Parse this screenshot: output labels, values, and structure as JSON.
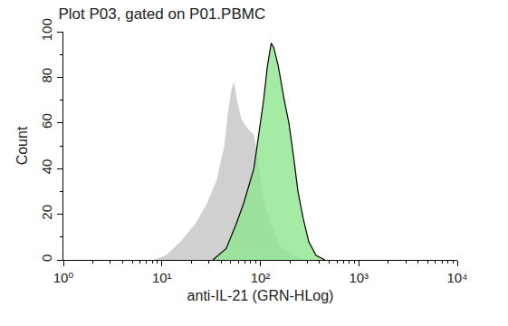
{
  "chart_data": {
    "type": "area",
    "title": "Plot P03, gated on P01.PBMC",
    "x_label": "anti-IL-21 (GRN-HLog)",
    "y_label": "Count",
    "log": "x",
    "xlim": [
      1,
      10000
    ],
    "xticks": [
      {
        "value": 1,
        "label": "10⁰"
      },
      {
        "value": 10,
        "label": "10¹"
      },
      {
        "value": 100,
        "label": "10²"
      },
      {
        "value": 1000,
        "label": "10³"
      },
      {
        "value": 10000,
        "label": "10⁴"
      }
    ],
    "ylim": [
      0,
      100
    ],
    "yticks": [
      0,
      20,
      40,
      60,
      80,
      100
    ],
    "grid": false,
    "series": [
      {
        "color": "#c4c4c4",
        "line_style": "none",
        "x": [
          8.3,
          11,
          15.5,
          22,
          29,
          36,
          43,
          47,
          51,
          54,
          58,
          64,
          68,
          76,
          86,
          94,
          104,
          129,
          160,
          218,
          300
        ],
        "values": [
          0,
          2,
          8,
          16,
          25,
          35,
          50,
          65,
          75,
          78,
          70,
          62,
          60,
          57,
          55,
          45,
          30,
          15,
          6,
          2,
          0
        ]
      },
      {
        "color": "#8ee68e",
        "line_style": "solid",
        "x": [
          33,
          45,
          56,
          68,
          86,
          100,
          108,
          118,
          129,
          137,
          152,
          175,
          195,
          218,
          241,
          273,
          310,
          368,
          453
        ],
        "values": [
          0,
          5,
          15,
          25,
          40,
          60,
          70,
          85,
          95,
          93,
          85,
          70,
          60,
          45,
          30,
          18,
          8,
          2,
          0
        ]
      }
    ]
  }
}
